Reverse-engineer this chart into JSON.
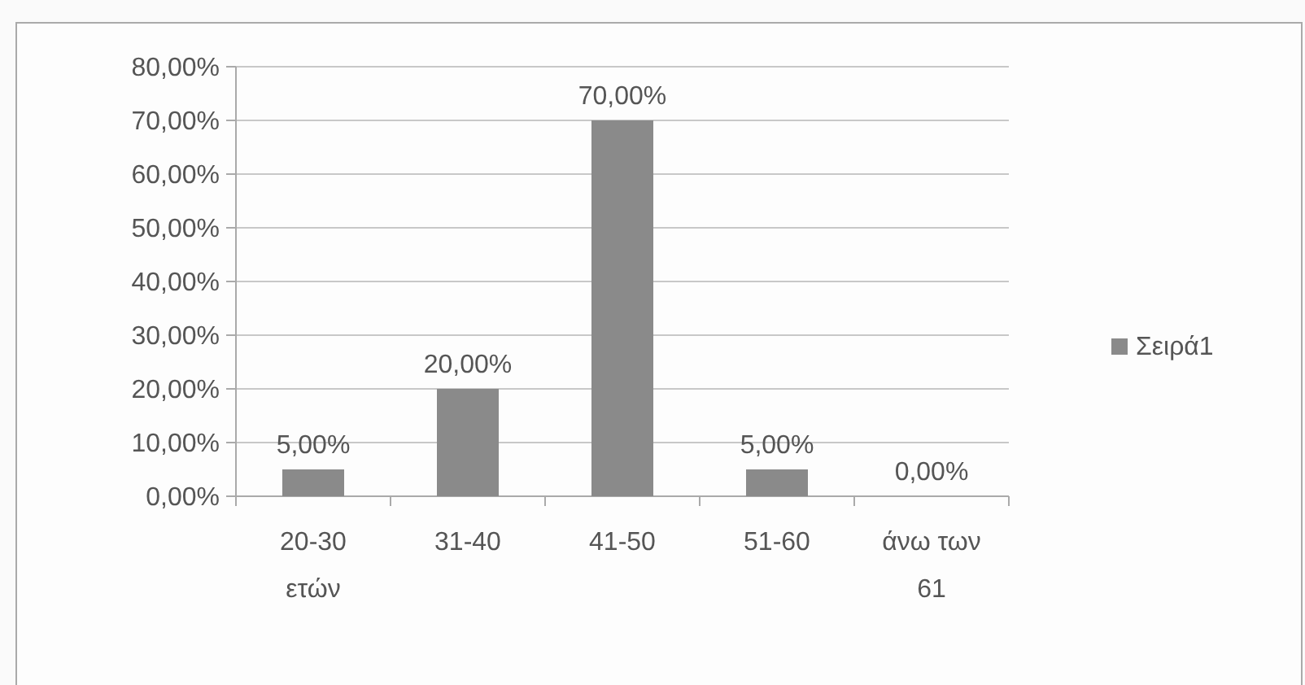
{
  "chart_data": {
    "type": "bar",
    "categories": [
      "20-30 ετών",
      "31-40",
      "41-50",
      "51-60",
      "άνω των 61"
    ],
    "series": [
      {
        "name": "Σειρά1",
        "color": "#8a8a8a",
        "values": [
          5,
          20,
          70,
          5,
          0
        ],
        "value_labels": [
          "5,00%",
          "20,00%",
          "70,00%",
          "5,00%",
          "0,00%"
        ]
      }
    ],
    "ylim": [
      0,
      80
    ],
    "yticks": [
      {
        "value": 0,
        "label": "0,00%"
      },
      {
        "value": 10,
        "label": "10,00%"
      },
      {
        "value": 20,
        "label": "20,00%"
      },
      {
        "value": 30,
        "label": "30,00%"
      },
      {
        "value": 40,
        "label": "40,00%"
      },
      {
        "value": 50,
        "label": "50,00%"
      },
      {
        "value": 60,
        "label": "60,00%"
      },
      {
        "value": 70,
        "label": "70,00%"
      },
      {
        "value": 80,
        "label": "80,00%"
      }
    ],
    "grid": "y",
    "legend": "right"
  }
}
